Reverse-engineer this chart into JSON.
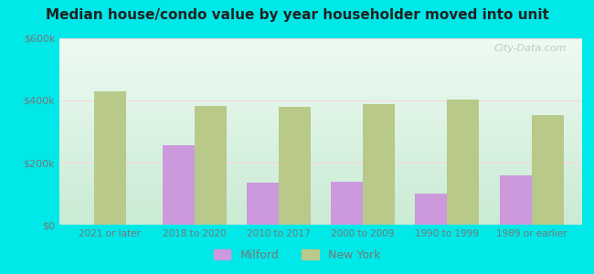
{
  "title": "Median house/condo value by year householder moved into unit",
  "categories": [
    "2021 or later",
    "2018 to 2020",
    "2010 to 2017",
    "2000 to 2009",
    "1990 to 1999",
    "1989 or earlier"
  ],
  "milford_values": [
    null,
    255000,
    135000,
    138000,
    100000,
    158000
  ],
  "newyork_values": [
    430000,
    383000,
    378000,
    388000,
    403000,
    352000
  ],
  "milford_color": "#cc99dd",
  "newyork_color": "#b8c98a",
  "background_outer": "#00e8e8",
  "axis_text_color": "#777777",
  "title_color": "#222222",
  "ylim": [
    0,
    600000
  ],
  "yticks": [
    0,
    200000,
    400000,
    600000
  ],
  "ytick_labels": [
    "$0",
    "$200k",
    "$400k",
    "$600k"
  ],
  "bar_width": 0.38,
  "legend_labels": [
    "Milford",
    "New York"
  ],
  "watermark": "City-Data.com"
}
